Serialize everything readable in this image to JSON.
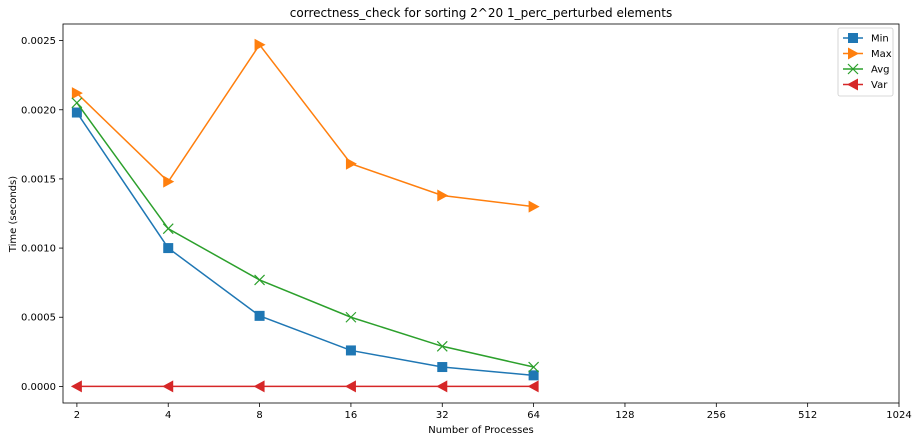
{
  "chart_data": {
    "type": "line",
    "title": "correctness_check for sorting 2^20 1_perc_perturbed elements",
    "xlabel": "Number of Processes",
    "ylabel": "Time (seconds)",
    "x_scale": "log2",
    "x_ticks": [
      2,
      4,
      8,
      16,
      32,
      64,
      128,
      256,
      512,
      1024
    ],
    "x_tick_labels": [
      "2",
      "4",
      "8",
      "16",
      "32",
      "64",
      "128",
      "256",
      "512",
      "1024"
    ],
    "xlim": [
      1.8,
      1024
    ],
    "y_ticks": [
      0.0,
      0.0005,
      0.001,
      0.0015,
      0.002,
      0.0025
    ],
    "y_tick_labels": [
      "0.0000",
      "0.0005",
      "0.0010",
      "0.0015",
      "0.0020",
      "0.0025"
    ],
    "ylim": [
      -0.00012,
      0.00262
    ],
    "grid": false,
    "legend_position": "top-right",
    "x": [
      2,
      4,
      8,
      16,
      32,
      64
    ],
    "series": [
      {
        "name": "Min",
        "color": "#1f77b4",
        "marker": "square",
        "values": [
          0.00198,
          0.001,
          0.00051,
          0.00026,
          0.00014,
          8e-05
        ]
      },
      {
        "name": "Max",
        "color": "#ff7f0e",
        "marker": "triangle-right",
        "values": [
          0.00212,
          0.00148,
          0.00247,
          0.00161,
          0.00138,
          0.0013
        ]
      },
      {
        "name": "Avg",
        "color": "#2ca02c",
        "marker": "x",
        "values": [
          0.00205,
          0.00114,
          0.00077,
          0.0005,
          0.00029,
          0.00014
        ]
      },
      {
        "name": "Var",
        "color": "#d62728",
        "marker": "triangle-left",
        "values": [
          0.0,
          0.0,
          0.0,
          0.0,
          0.0,
          0.0
        ]
      }
    ]
  }
}
